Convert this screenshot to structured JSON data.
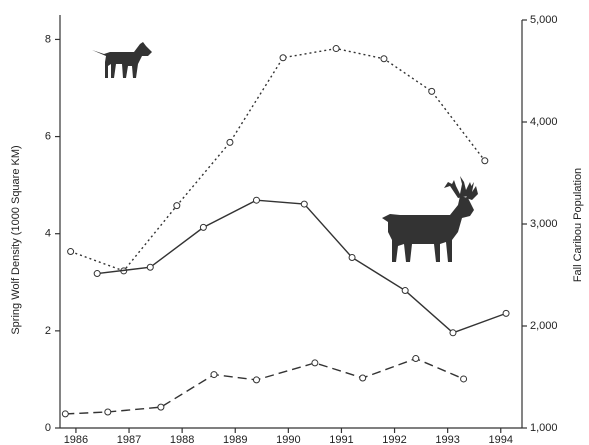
{
  "chart_data": {
    "type": "line",
    "y_label": "Spring Wolf Density (1000 Square KM)",
    "y2_label": "Fall Caribou Population",
    "xlim": [
      1985.7,
      1994.4
    ],
    "xticks": [
      1986,
      1987,
      1988,
      1989,
      1990,
      1991,
      1992,
      1993,
      1994
    ],
    "ylim": [
      0,
      8.4
    ],
    "yticks": [
      0,
      2,
      4,
      6,
      8
    ],
    "y2lim": [
      1000,
      5000
    ],
    "y2ticks": [
      {
        "value": 1000,
        "label": "1,000"
      },
      {
        "value": 2000,
        "label": "2,000"
      },
      {
        "value": 3000,
        "label": "3,000"
      },
      {
        "value": 4000,
        "label": "4,000"
      },
      {
        "value": 5000,
        "label": "5,000"
      }
    ],
    "series": [
      {
        "color": "#333333",
        "style": "dotted",
        "axis": "y2",
        "x": [
          1985.9,
          1986.9,
          1987.9,
          1988.9,
          1989.9,
          1990.9,
          1991.8,
          1992.7,
          1993.7
        ],
        "values": [
          2730,
          2540,
          3180,
          3800,
          4630,
          4720,
          4620,
          4300,
          3620
        ]
      },
      {
        "color": "#333333",
        "style": "solid",
        "x": [
          1986.4,
          1987.4,
          1988.4,
          1989.4,
          1990.3,
          1991.2,
          1992.2,
          1993.1,
          1994.1
        ],
        "values": [
          3.18,
          3.31,
          4.13,
          4.69,
          4.61,
          3.51,
          2.83,
          1.96,
          2.36
        ]
      },
      {
        "color": "#333333",
        "style": "dashed",
        "x": [
          1985.8,
          1986.6,
          1987.6,
          1988.6,
          1989.4,
          1990.5,
          1991.4,
          1992.4,
          1993.3
        ],
        "values": [
          0.29,
          0.33,
          0.43,
          1.1,
          0.99,
          1.34,
          1.03,
          1.43,
          1.01
        ]
      }
    ]
  }
}
